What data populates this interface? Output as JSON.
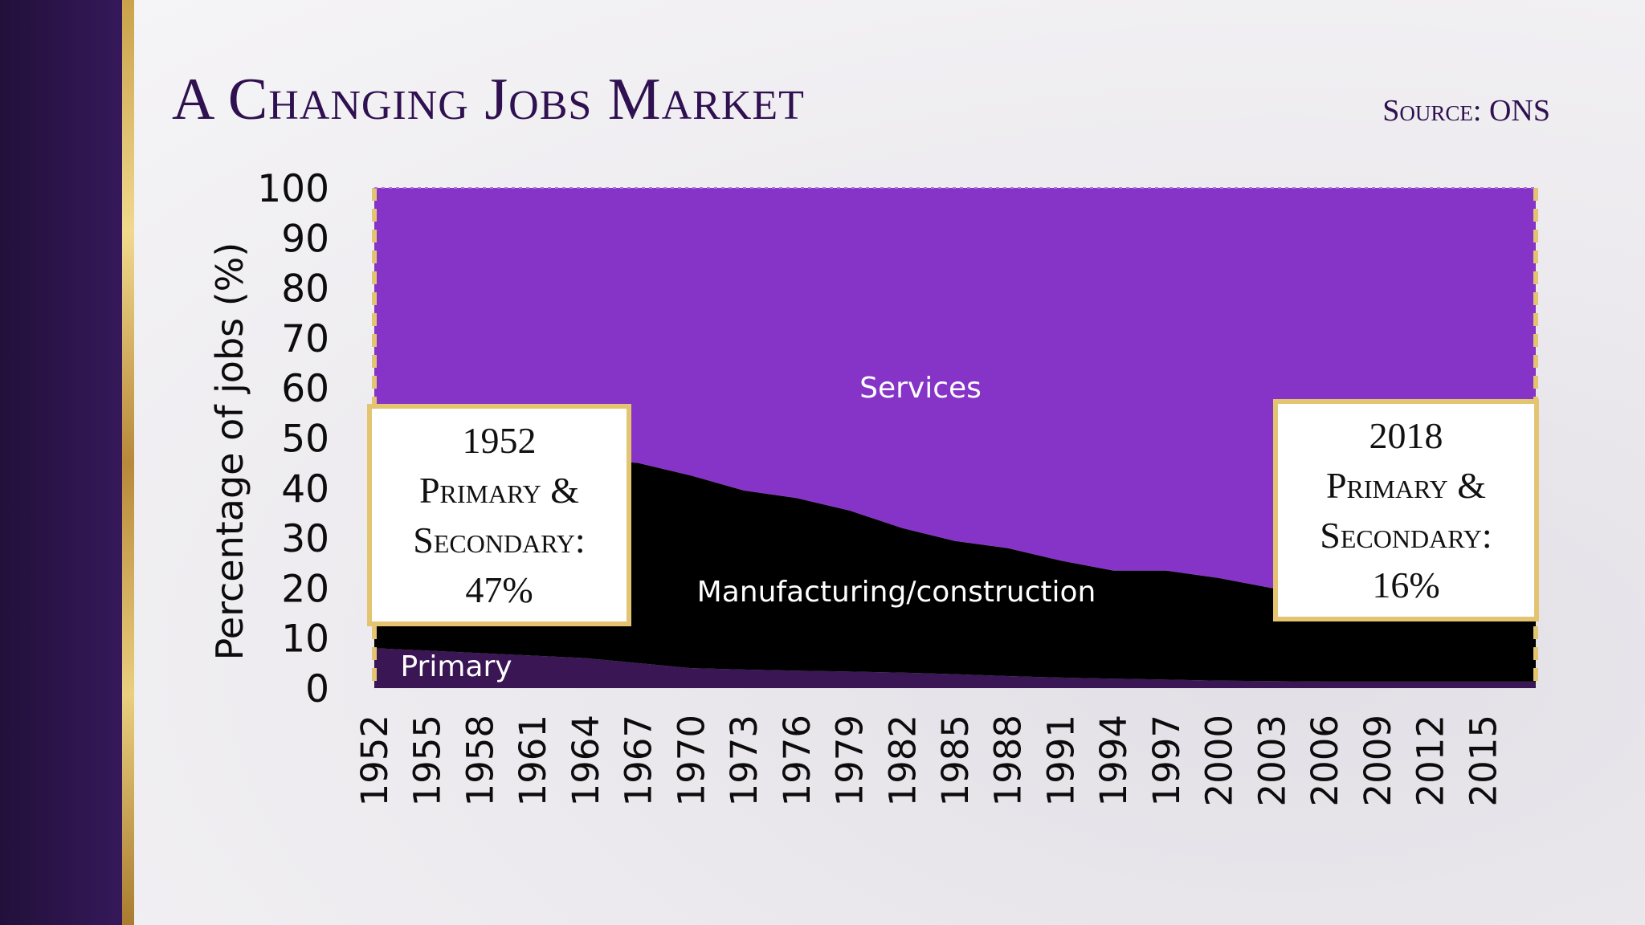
{
  "title": "A Changing Jobs Market",
  "source": "Source: ONS",
  "callouts": {
    "left": {
      "year": "1952",
      "line1": "Primary &",
      "line2": "Secondary:",
      "value": "47%"
    },
    "right": {
      "year": "2018",
      "line1": "Primary &",
      "line2": "Secondary:",
      "value": "16%"
    }
  },
  "colors": {
    "services": "#8634c7",
    "manufacturing": "#000000",
    "primary": "#3a1654",
    "accent_gold": "#e3c470",
    "title": "#2f1050"
  },
  "chart_data": {
    "type": "area",
    "stacked": true,
    "ylabel": "Percentage of jobs (%)",
    "ylim": [
      0,
      100
    ],
    "yticks": [
      0,
      10,
      20,
      30,
      40,
      50,
      60,
      70,
      80,
      90,
      100
    ],
    "xlim": [
      1952,
      2018
    ],
    "xticks": [
      1952,
      1955,
      1958,
      1961,
      1964,
      1967,
      1970,
      1973,
      1976,
      1979,
      1982,
      1985,
      1988,
      1991,
      1994,
      1997,
      2000,
      2003,
      2006,
      2009,
      2012,
      2015
    ],
    "x": [
      1952,
      1955,
      1958,
      1961,
      1964,
      1967,
      1970,
      1973,
      1976,
      1979,
      1982,
      1985,
      1988,
      1991,
      1994,
      1997,
      2000,
      2003,
      2006,
      2009,
      2012,
      2015,
      2018
    ],
    "series": [
      {
        "name": "Primary",
        "values": [
          8,
          7.5,
          7,
          6.5,
          6,
          5,
          4,
          3.7,
          3.5,
          3.3,
          3.1,
          2.8,
          2.4,
          2.1,
          1.9,
          1.7,
          1.5,
          1.4,
          1.3,
          1.3,
          1.3,
          1.3,
          1.3
        ]
      },
      {
        "name": "Manufacturing/construction",
        "values": [
          39,
          39.5,
          40,
          40,
          40,
          40,
          38.5,
          35.8,
          34.5,
          32.2,
          28.9,
          26.6,
          25.6,
          23.4,
          21.6,
          21.8,
          20.5,
          18.6,
          17.2,
          16.2,
          15.2,
          14.7,
          14.7
        ]
      },
      {
        "name": "Services",
        "values": [
          53,
          53,
          53,
          53.5,
          54,
          55,
          57.5,
          60.5,
          62,
          64.5,
          68,
          70.6,
          72,
          74.5,
          76.5,
          76.5,
          78,
          80,
          81.5,
          82.5,
          83.5,
          84,
          84
        ]
      }
    ]
  }
}
